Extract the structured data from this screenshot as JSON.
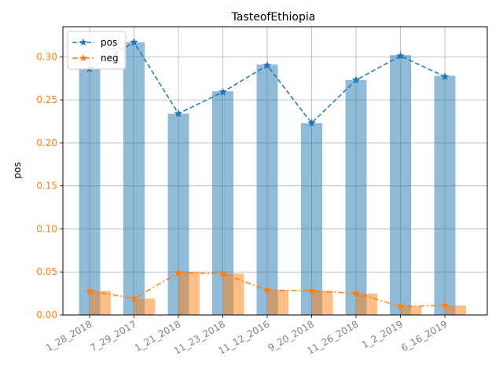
{
  "chart_data": {
    "type": "bar",
    "title": "TasteofEthiopia",
    "xlabel": "",
    "ylabel": "pos",
    "categories": [
      "1_28_2018",
      "7_29_2017",
      "1_21_2018",
      "11_23_2018",
      "11_12_2016",
      "9_20_2018",
      "11_26_2018",
      "1_2_2019",
      "6_16_2019"
    ],
    "ylim": [
      0,
      0.335
    ],
    "yticks": [
      "0.00",
      "0.05",
      "0.10",
      "0.15",
      "0.20",
      "0.25",
      "0.30"
    ],
    "grid": true,
    "legend_position": "top-left",
    "bar_series": [
      {
        "values": [
          0.287,
          0.317,
          0.234,
          0.26,
          0.291,
          0.223,
          0.273,
          0.302,
          0.278
        ],
        "color": "#1f77b4",
        "opacity": 0.5
      },
      {
        "values": [
          0.028,
          0.019,
          0.05,
          0.048,
          0.029,
          0.028,
          0.025,
          0.01,
          0.011
        ],
        "color": "#ff7f0e",
        "opacity": 0.5
      }
    ],
    "line_series": [
      {
        "name": "pos",
        "values": [
          0.286,
          0.317,
          0.234,
          0.259,
          0.29,
          0.223,
          0.273,
          0.301,
          0.277
        ],
        "color": "#1f77b4",
        "style": "dashed",
        "marker": "star"
      },
      {
        "name": "neg",
        "values": [
          0.028,
          0.019,
          0.049,
          0.048,
          0.029,
          0.028,
          0.025,
          0.01,
          0.011
        ],
        "color": "#ff7f0e",
        "style": "dashdot",
        "marker": "star"
      }
    ]
  }
}
